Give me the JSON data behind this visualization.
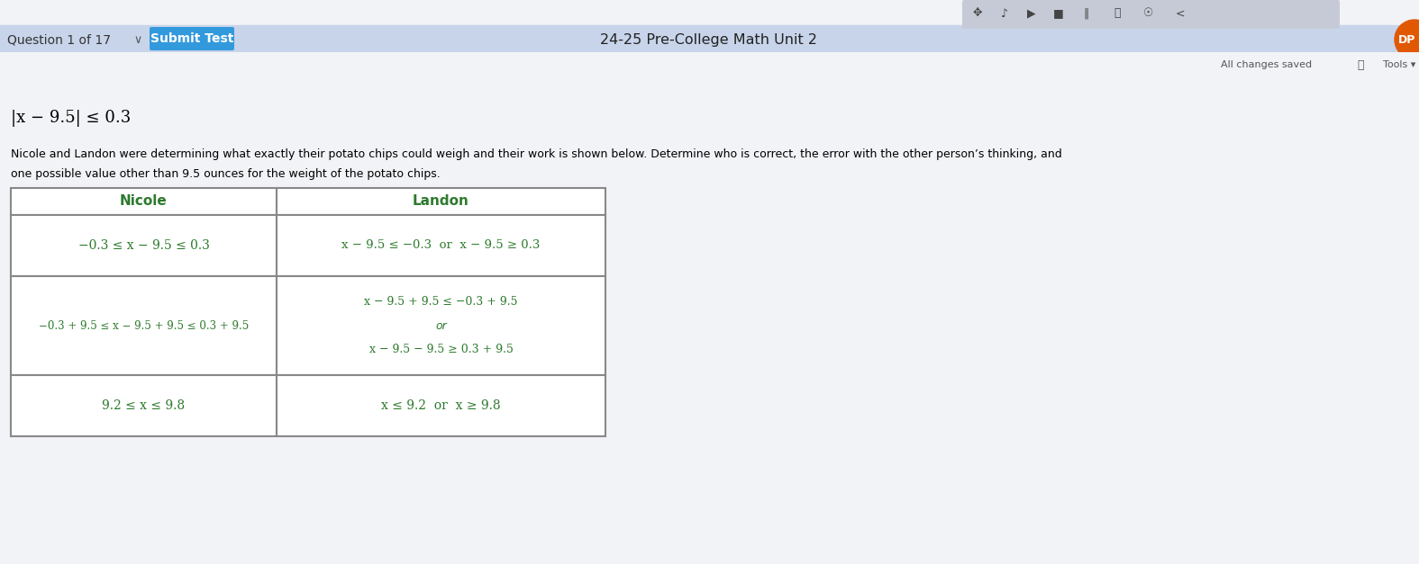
{
  "title": "24-25 Pre-College Math Unit 2",
  "question_label": "Question 1 of 17",
  "submit_btn": "Submit Test",
  "all_changes": "All changes saved",
  "tools_text": "Tools",
  "top_bar_color": "#1e50b3",
  "submit_btn_color": "#3399dd",
  "page_bg": "#e8eaf2",
  "content_bg": "#f2f3f7",
  "toolbar_bg": "#dde0e8",
  "equation_line": "|x − 9.5| ≤ 0.3",
  "problem_text_line1": "Nicole and Landon were determining what exactly their potato chips could weigh and their work is shown below. Determine who is correct, the error with the other person’s thinking, and",
  "problem_text_line2": "one possible value other than 9.5 ounces for the weight of the potato chips.",
  "col_header_nicole": "Nicole",
  "col_header_landon": "Landon",
  "nicole_row1": "−0.3 ≤ x − 9.5 ≤ 0.3",
  "landon_row1": "x − 9.5 ≤ −0.3  or  x − 9.5 ≥ 0.3",
  "nicole_row2": "−0.3 + 9.5 ≤ x − 9.5 + 9.5 ≤ 0.3 + 9.5",
  "landon_row2a": "x − 9.5 + 9.5 ≤ −0.3 + 9.5",
  "landon_row2b": "or",
  "landon_row2c": "x − 9.5 − 9.5 ≥ 0.3 + 9.5",
  "nicole_row3": "9.2 ≤ x ≤ 9.8",
  "landon_row3": "x ≤ 9.2  or  x ≥ 9.8",
  "table_border_color": "#888888",
  "header_text_color": "#2d7a2d",
  "cell_text_color": "#2d7a2d",
  "dp_color": "#e05800"
}
